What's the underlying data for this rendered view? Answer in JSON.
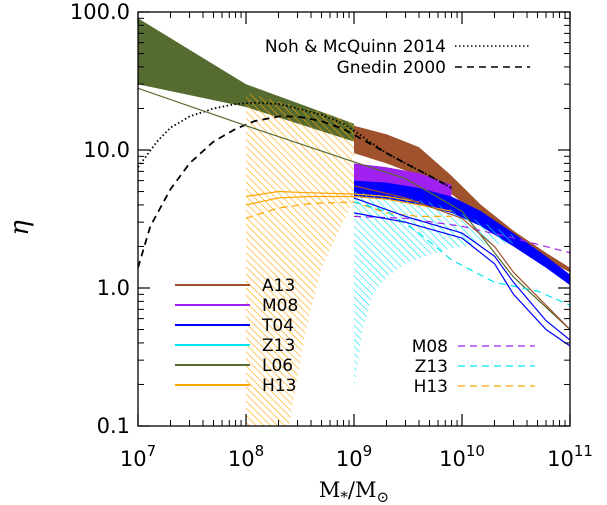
{
  "chart_data": {
    "type": "line",
    "xscale": "log",
    "yscale": "log",
    "xlim": [
      10000000.0,
      100000000000.0
    ],
    "ylim": [
      0.1,
      100
    ],
    "xlabel": {
      "main": "M",
      "sub1": "*",
      "slash": "/M",
      "sub2": "⊙"
    },
    "ylabel": "η",
    "x_ticks": [
      {
        "value": 10000000.0,
        "base": "10",
        "exp": "7"
      },
      {
        "value": 100000000.0,
        "base": "10",
        "exp": "8"
      },
      {
        "value": 1000000000.0,
        "base": "10",
        "exp": "9"
      },
      {
        "value": 10000000000.0,
        "base": "10",
        "exp": "10"
      },
      {
        "value": 100000000000.0,
        "base": "10",
        "exp": "11"
      }
    ],
    "y_ticks": [
      {
        "value": 100,
        "label": "100.0"
      },
      {
        "value": 10,
        "label": "10.0"
      },
      {
        "value": 1,
        "label": "1.0"
      },
      {
        "value": 0.1,
        "label": "0.1"
      }
    ],
    "colors": {
      "A13": "#a0522d",
      "M08": "#a020f0",
      "T04": "#0000ff",
      "Z13": "#00e5ee",
      "L06": "#556b2f",
      "H13": "#ffa500"
    },
    "legend_top": [
      {
        "label": "Noh & McQuinn 2014",
        "style": "dotted"
      },
      {
        "label": "Gnedin 2000",
        "style": "dashed"
      }
    ],
    "legend_left": [
      {
        "label": "A13",
        "key": "A13"
      },
      {
        "label": "M08",
        "key": "M08"
      },
      {
        "label": "T04",
        "key": "T04"
      },
      {
        "label": "Z13",
        "key": "Z13"
      },
      {
        "label": "L06",
        "key": "L06"
      },
      {
        "label": "H13",
        "key": "H13"
      }
    ],
    "legend_right": [
      {
        "label": "M08",
        "key": "M08"
      },
      {
        "label": "Z13",
        "key": "Z13"
      },
      {
        "label": "H13",
        "key": "H13"
      }
    ],
    "bands": [
      {
        "key": "L06",
        "fill": "solid",
        "x": [
          10000000.0,
          100000000.0,
          1000000000.0
        ],
        "upper": [
          90,
          30,
          15.5
        ],
        "lower": [
          30,
          20.5,
          11.5
        ]
      },
      {
        "key": "H13",
        "fill": "hatch",
        "x": [
          100000000.0,
          160000000.0,
          250000000.0,
          350000000.0,
          500000000.0,
          1000000000.0
        ],
        "upper": [
          26,
          23.5,
          21.5,
          20,
          19,
          15.5
        ],
        "lower": [
          0.1,
          0.1,
          0.1,
          0.45,
          1.4,
          4.4
        ]
      },
      {
        "key": "A13",
        "fill": "solid",
        "x": [
          1000000000.0,
          2000000000.0,
          4000000000.0,
          8000000000.0,
          15000000000.0,
          30000000000.0,
          60000000000.0,
          100000000000.0
        ],
        "upper": [
          15,
          13,
          10.5,
          6.5,
          4.0,
          2.6,
          1.8,
          1.4
        ],
        "lower": [
          9.5,
          8.0,
          6.5,
          4.8,
          3.2,
          2.2,
          1.6,
          1.3
        ]
      },
      {
        "key": "M08",
        "fill": "solid",
        "x": [
          1000000000.0,
          2000000000.0,
          4000000000.0,
          8000000000.0
        ],
        "upper": [
          8.0,
          7.5,
          6.8,
          5.6
        ],
        "lower": [
          5.6,
          5.4,
          5.0,
          4.4
        ]
      },
      {
        "key": "T04",
        "fill": "solid",
        "x": [
          1000000000.0,
          2000000000.0,
          4000000000.0,
          8000000000.0,
          15000000000.0,
          30000000000.0,
          60000000000.0,
          100000000000.0
        ],
        "upper": [
          6.0,
          5.8,
          5.3,
          4.6,
          3.6,
          2.5,
          1.7,
          1.25
        ],
        "lower": [
          4.6,
          4.4,
          4.0,
          3.5,
          2.8,
          2.0,
          1.4,
          1.05
        ]
      },
      {
        "key": "Z13",
        "fill": "hatch",
        "x": [
          1000000000.0,
          1200000000.0,
          1500000000.0,
          2000000000.0,
          3000000000.0,
          5000000000.0,
          8000000000.0,
          15000000000.0,
          30000000000.0
        ],
        "upper": [
          5.0,
          4.9,
          4.8,
          4.7,
          4.5,
          4.2,
          3.7,
          3.0,
          2.4
        ],
        "lower": [
          0.18,
          0.5,
          0.9,
          1.2,
          1.5,
          1.75,
          1.95,
          2.05,
          2.1
        ]
      }
    ],
    "lines": [
      {
        "name": "Noh & McQuinn 2014",
        "color": "#000000",
        "style": "dotted",
        "x": [
          10000000.0,
          15000000.0,
          20000000.0,
          30000000.0,
          50000000.0,
          80000000.0,
          120000000.0,
          200000000.0,
          300000000.0,
          500000000.0,
          800000000.0,
          1200000000.0,
          2000000000.0,
          3000000000.0,
          5000000000.0,
          8000000000.0
        ],
        "y": [
          7.5,
          11.5,
          14.5,
          17.5,
          20,
          21.5,
          22,
          21.5,
          20,
          18,
          15.5,
          12.5,
          9.5,
          8,
          6.5,
          5.3
        ]
      },
      {
        "name": "Gnedin 2000",
        "color": "#000000",
        "style": "dashed",
        "x": [
          10000000.0,
          13000000.0,
          20000000.0,
          30000000.0,
          50000000.0,
          80000000.0,
          120000000.0,
          200000000.0,
          300000000.0,
          500000000.0,
          800000000.0,
          1300000000.0,
          2000000000.0,
          3000000000.0,
          5000000000.0,
          8000000000.0
        ],
        "y": [
          1.4,
          2.8,
          5.2,
          8,
          11.5,
          14.2,
          16.2,
          17.5,
          17.5,
          16.2,
          14.2,
          11.5,
          9.5,
          8,
          6.5,
          5.3
        ]
      },
      {
        "name": "L06 line",
        "key": "L06",
        "style": "solid",
        "x": [
          10000000.0,
          100000000.0,
          1000000000.0,
          3000000000.0,
          10000000000.0,
          30000000000.0,
          100000000000.0
        ],
        "y": [
          28,
          15,
          8.2,
          6.2,
          3.6,
          1.2,
          0.5
        ]
      },
      {
        "name": "H13 solid",
        "key": "H13",
        "style": "solid",
        "x": [
          100000000.0,
          200000000.0,
          400000000.0,
          1000000000.0,
          2000000000.0,
          4000000000.0,
          8000000000.0
        ],
        "y": [
          4.0,
          4.5,
          4.6,
          4.6,
          4.4,
          4.0,
          3.6
        ]
      },
      {
        "name": "H13 solid 2",
        "key": "H13",
        "style": "solid",
        "x": [
          100000000.0,
          200000000.0,
          400000000.0,
          1000000000.0,
          2000000000.0,
          4000000000.0
        ],
        "y": [
          4.6,
          5.0,
          4.9,
          4.8,
          4.6,
          4.2
        ]
      },
      {
        "name": "H13 dashed",
        "key": "H13",
        "style": "dashed",
        "x": [
          100000000.0,
          200000000.0,
          400000000.0,
          1000000000.0,
          2000000000.0,
          4000000000.0,
          8000000000.0
        ],
        "y": [
          3.2,
          3.8,
          4.1,
          4.2,
          3.5,
          3.3,
          3.3
        ]
      },
      {
        "name": "M08 dashed",
        "key": "M08",
        "style": "dashed",
        "x": [
          1000000000.0,
          3000000000.0,
          10000000000.0,
          30000000000.0,
          100000000000.0
        ],
        "y": [
          3.3,
          3.2,
          2.8,
          2.3,
          1.8
        ]
      },
      {
        "name": "Z13 dashed",
        "key": "Z13",
        "style": "dashed",
        "x": [
          1000000000.0,
          2000000000.0,
          4000000000.0,
          8000000000.0,
          20000000000.0,
          50000000000.0,
          100000000000.0
        ],
        "y": [
          4.2,
          3.6,
          2.5,
          1.6,
          1.1,
          0.95,
          0.75
        ]
      },
      {
        "name": "T04 thin 1",
        "key": "T04",
        "style": "solid",
        "x": [
          1000000000.0,
          3000000000.0,
          10000000000.0,
          20000000000.0,
          30000000000.0,
          60000000000.0,
          100000000000.0
        ],
        "y": [
          3.5,
          3.0,
          2.3,
          1.5,
          0.9,
          0.5,
          0.38
        ]
      },
      {
        "name": "T04 thin 2",
        "key": "T04",
        "style": "solid",
        "x": [
          1000000000.0,
          3000000000.0,
          10000000000.0,
          20000000000.0,
          30000000000.0,
          60000000000.0,
          100000000000.0
        ],
        "y": [
          4.5,
          3.3,
          2.5,
          1.7,
          1.1,
          0.58,
          0.42
        ]
      },
      {
        "name": "A13 thin",
        "key": "A13",
        "style": "solid",
        "x": [
          1000000000.0,
          3000000000.0,
          10000000000.0,
          20000000000.0,
          30000000000.0,
          60000000000.0,
          100000000000.0
        ],
        "y": [
          5.5,
          4.5,
          3.2,
          2.0,
          1.3,
          0.75,
          0.5
        ]
      }
    ]
  }
}
